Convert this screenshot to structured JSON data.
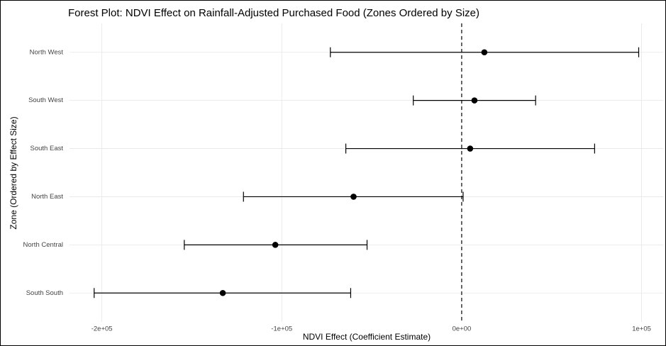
{
  "chart_data": {
    "type": "forest",
    "title": "Forest Plot: NDVI Effect on Rainfall-Adjusted Purchased Food (Zones Ordered by Size)",
    "x_label": "NDVI Effect (Coefficient Estimate)",
    "y_label": "Zone (Ordered by Effect Size)",
    "categories": [
      "North West",
      "South West",
      "South East",
      "North East",
      "North Central",
      "South South"
    ],
    "values": [
      12600,
      7100,
      4700,
      -60100,
      -103600,
      -132800
    ],
    "lower": [
      -73000,
      -26900,
      -64400,
      -121300,
      -154200,
      -204300
    ],
    "upper": [
      98400,
      41100,
      73900,
      800,
      -52600,
      -61700
    ],
    "xlim": [
      -218000,
      112000
    ],
    "xticks": [
      {
        "value": -200000,
        "label": "-2e+05"
      },
      {
        "value": -100000,
        "label": "-1e+05"
      },
      {
        "value": 0,
        "label": "0e+00"
      },
      {
        "value": 100000,
        "label": "1e+05"
      }
    ],
    "vline": 0,
    "color": "#000000",
    "grid": true
  }
}
